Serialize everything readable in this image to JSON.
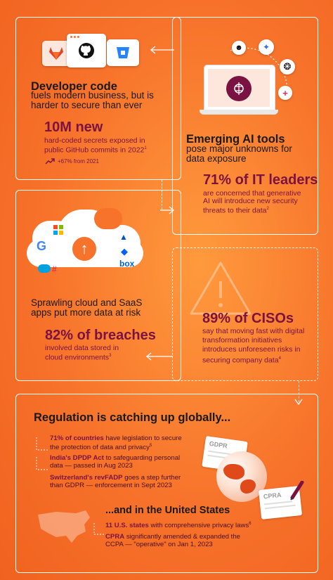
{
  "developer": {
    "title": "Developer code",
    "subtitle_lines": [
      "fuels modern business, but is",
      "harder to secure than ever"
    ],
    "stat": "10M new",
    "stat_desc_lines": [
      "hard-coded secrets exposed in",
      "public GitHub commits in 2022"
    ],
    "stat_note": "1",
    "trend": "+67% from 2021"
  },
  "ai": {
    "title": "Emerging AI tools",
    "subtitle_lines": [
      "pose major unknowns for",
      "data exposure"
    ],
    "stat": "71% of IT leaders",
    "stat_desc_lines": [
      "are concerned that generative",
      "AI will introduce new security",
      "threats to their data"
    ],
    "stat_note": "2"
  },
  "cloud": {
    "title_lines": [
      "Sprawling cloud and SaaS",
      "apps put more data at risk"
    ],
    "stat": "82% of breaches",
    "stat_desc_lines": [
      "involved data stored in",
      "cloud environments"
    ],
    "stat_note": "3",
    "box_label": "box"
  },
  "cisos": {
    "stat": "89% of CISOs",
    "stat_desc_lines": [
      "say that moving fast with digital",
      "transformation initiatives",
      "introduces unforeseen risks in",
      "securing company data"
    ],
    "stat_note": "4"
  },
  "regulation": {
    "title": "Regulation is catching up globally...",
    "items": [
      {
        "bold": "71% of countries",
        "rest_first": " have legislation to secure",
        "line2": "the protection of data and privacy",
        "note": "5"
      },
      {
        "bold": "India's DPDP Act",
        "rest_first": " to safeguarding personal",
        "line2": "data — passed in Aug 2023",
        "note": ""
      },
      {
        "bold": "Switzerland's revFADP",
        "rest_first": " goes a step further",
        "line2": "than GDPR — enforcement in Sept 2023",
        "note": ""
      }
    ],
    "us_title": "...and in the United States",
    "us_items": [
      {
        "bold": "11 U.S. states",
        "rest_first": " with comprehensive privacy laws",
        "line2": "",
        "note": "6"
      },
      {
        "bold": "CPRA",
        "rest_first": " significantly amended & expanded the",
        "line2": "CCPA — \"operative\" on Jan 1, 2023",
        "note": ""
      }
    ],
    "doc_labels": [
      "GDPR",
      "CPRA"
    ]
  },
  "colors": {
    "accent": "#7a1242",
    "background": "#f7722b",
    "text": "#1a1a1a"
  },
  "icons": [
    "gitlab-icon",
    "github-icon",
    "bitbucket-icon",
    "ai-brain-icon",
    "openai-icon",
    "microsoft-icon",
    "google-icon",
    "dropbox-icon",
    "salesforce-icon",
    "slack-icon",
    "upload-arrow-icon",
    "warning-icon",
    "globe-icon",
    "us-map-icon"
  ]
}
